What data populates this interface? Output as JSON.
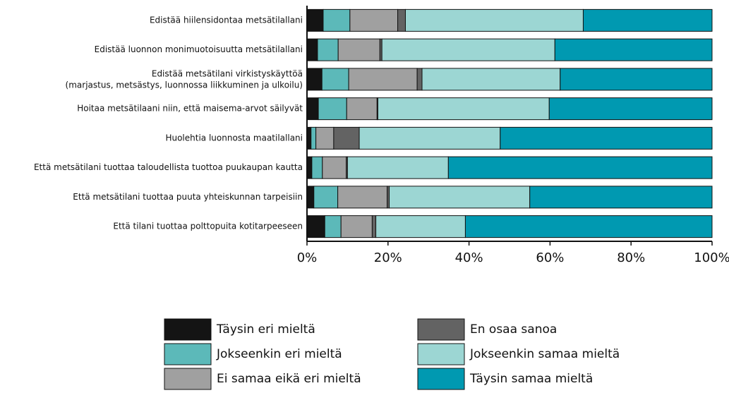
{
  "chart_data": {
    "type": "stacked-barh",
    "categories": [
      "Edistää hiilensidontaa metsätilallani",
      "Edistää luonnon monimuotoisuutta metsätilallani",
      "Edistää metsätilani virkistyskäyttöä\n(marjastus, metsästys, luonnossa liikkuminen ja ulkoilu)",
      "Hoitaa metsätilaani niin, että maisema-arvot säilyvät",
      "Huolehtia luonnosta maatilallani",
      "Että metsätilani tuottaa taloudellista tuottoa puukaupan kautta",
      "Että metsätilani tuottaa puuta yhteiskunnan tarpeisiin",
      "Että tilani tuottaa polttopuita kotitarpeeseen"
    ],
    "series": [
      {
        "name": "Täysin eri mieltä",
        "color": "#141414",
        "values": [
          4.0,
          2.6,
          3.7,
          2.8,
          1.0,
          1.2,
          1.7,
          4.4
        ]
      },
      {
        "name": "Jokseenkin eri mieltä",
        "color": "#5cb9b9",
        "values": [
          6.6,
          5.1,
          6.6,
          7.0,
          1.2,
          2.6,
          5.9,
          4.0
        ]
      },
      {
        "name": "Ei samaa eikä eri mieltä",
        "color": "#a0a0a0",
        "values": [
          11.8,
          10.3,
          16.9,
          7.5,
          4.4,
          5.9,
          12.2,
          7.7
        ]
      },
      {
        "name": "En osaa sanoa",
        "color": "#636363",
        "values": [
          1.9,
          0.5,
          1.2,
          0.2,
          6.3,
          0.3,
          0.5,
          0.9
        ]
      },
      {
        "name": "Jokseenkin samaa mieltä",
        "color": "#9cd6d3",
        "values": [
          43.9,
          42.7,
          34.1,
          42.3,
          34.8,
          24.9,
          34.7,
          22.1
        ]
      },
      {
        "name": "Täysin samaa mieltä",
        "color": "#0099b1",
        "values": [
          31.8,
          38.8,
          37.5,
          40.2,
          52.3,
          65.1,
          45.0,
          60.9
        ]
      }
    ],
    "xlim": [
      0,
      100
    ],
    "xticks": [
      {
        "value": 0,
        "label": "0%"
      },
      {
        "value": 20,
        "label": "20%"
      },
      {
        "value": 40,
        "label": "40%"
      },
      {
        "value": 60,
        "label": "60%"
      },
      {
        "value": 80,
        "label": "80%"
      },
      {
        "value": 100,
        "label": "100%"
      }
    ]
  }
}
